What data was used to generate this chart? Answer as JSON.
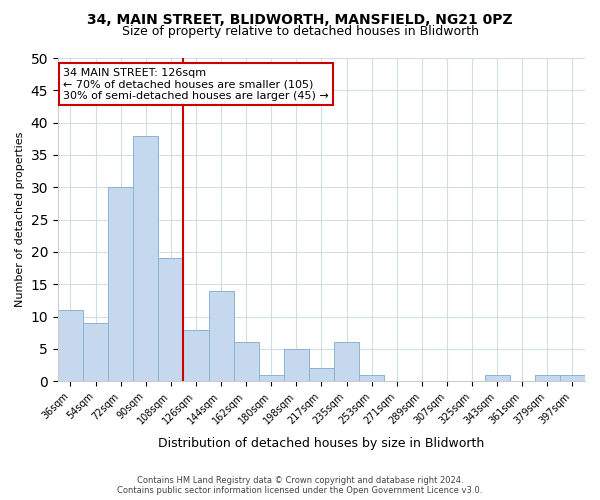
{
  "title1": "34, MAIN STREET, BLIDWORTH, MANSFIELD, NG21 0PZ",
  "title2": "Size of property relative to detached houses in Blidworth",
  "xlabel": "Distribution of detached houses by size in Blidworth",
  "ylabel": "Number of detached properties",
  "bin_labels": [
    "36sqm",
    "54sqm",
    "72sqm",
    "90sqm",
    "108sqm",
    "126sqm",
    "144sqm",
    "162sqm",
    "180sqm",
    "198sqm",
    "217sqm",
    "235sqm",
    "253sqm",
    "271sqm",
    "289sqm",
    "307sqm",
    "325sqm",
    "343sqm",
    "361sqm",
    "379sqm",
    "397sqm"
  ],
  "bar_heights": [
    11,
    9,
    30,
    38,
    19,
    8,
    14,
    6,
    1,
    5,
    2,
    6,
    1,
    0,
    0,
    0,
    0,
    1,
    0,
    1,
    1
  ],
  "bar_color": "#c5d8ed",
  "bar_edge_color": "#8ab4d0",
  "subject_line_color": "#cc0000",
  "ylim": [
    0,
    50
  ],
  "yticks": [
    0,
    5,
    10,
    15,
    20,
    25,
    30,
    35,
    40,
    45,
    50
  ],
  "annotation_title": "34 MAIN STREET: 126sqm",
  "annotation_line1": "← 70% of detached houses are smaller (105)",
  "annotation_line2": "30% of semi-detached houses are larger (45) →",
  "annotation_box_color": "#ffffff",
  "annotation_box_edge": "#cc0000",
  "footer_line1": "Contains HM Land Registry data © Crown copyright and database right 2024.",
  "footer_line2": "Contains public sector information licensed under the Open Government Licence v3.0.",
  "bg_color": "#ffffff",
  "grid_color": "#d0dde8"
}
